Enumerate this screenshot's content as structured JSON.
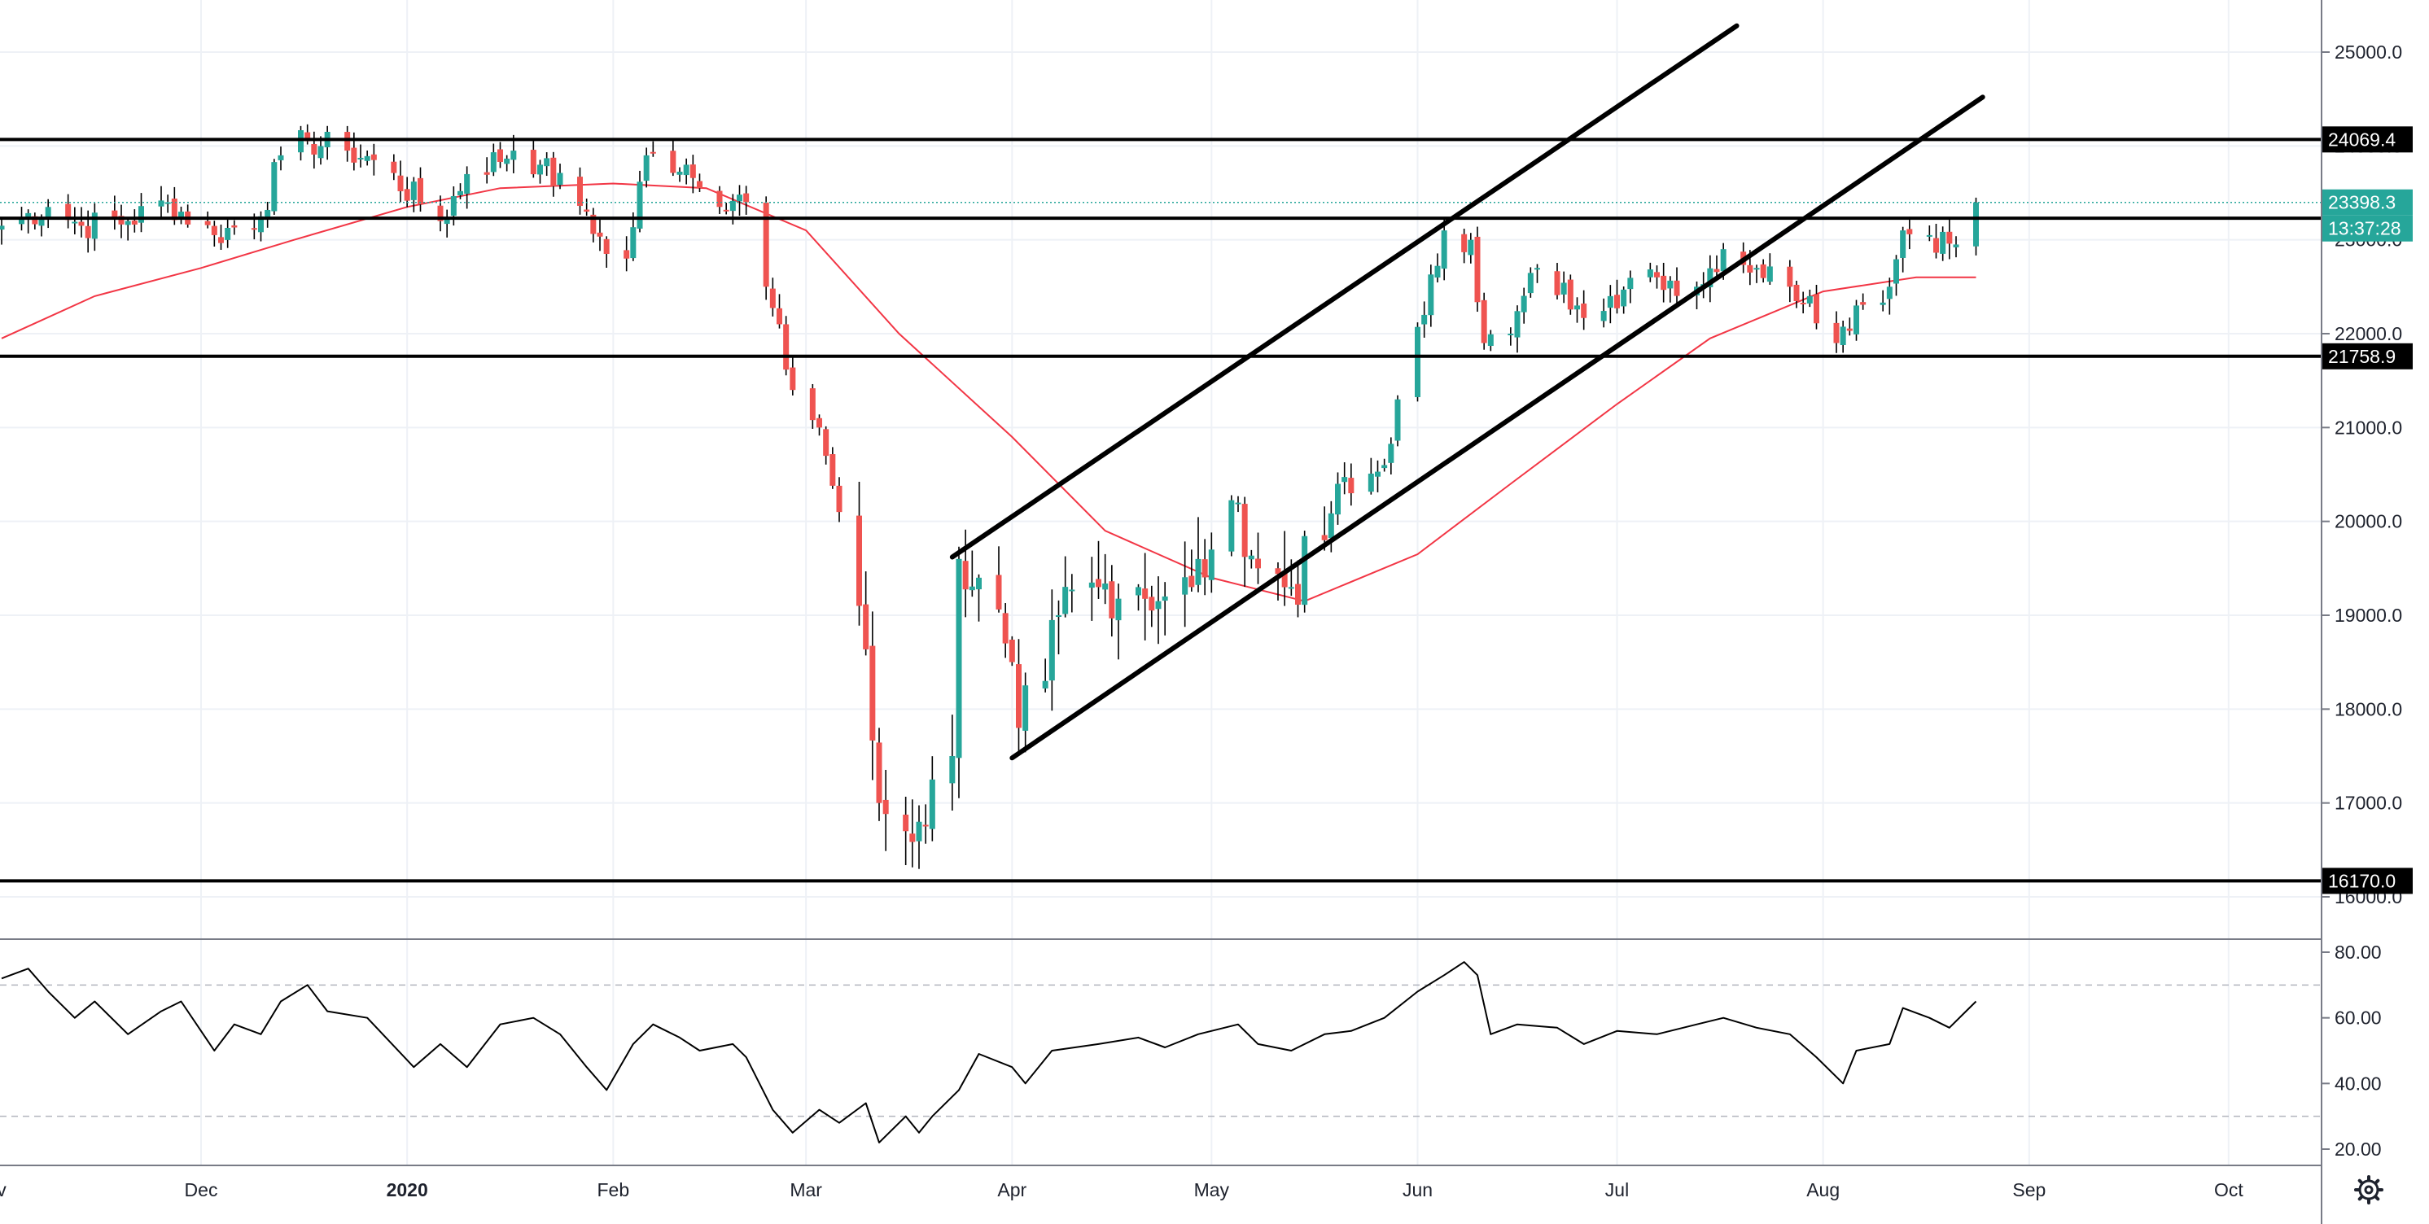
{
  "chart_data": [
    {
      "type": "candlestick",
      "title": "",
      "y_axis": {
        "range": [
          15550,
          25600
        ],
        "ticks": [
          "25000.0",
          "24000.0",
          "23000.0",
          "22000.0",
          "21000.0",
          "20000.0",
          "19000.0",
          "18000.0",
          "17000.0",
          "16000.0"
        ]
      },
      "x_axis": {
        "month_labels": [
          {
            "label": "v",
            "date": "2019-11-01"
          },
          {
            "label": "Dec",
            "date": "2019-12-01"
          },
          {
            "label": "2020",
            "date": "2020-01-01"
          },
          {
            "label": "Feb",
            "date": "2020-02-01"
          },
          {
            "label": "Mar",
            "date": "2020-03-01"
          },
          {
            "label": "Apr",
            "date": "2020-04-01"
          },
          {
            "label": "May",
            "date": "2020-05-01"
          },
          {
            "label": "Jun",
            "date": "2020-06-01"
          },
          {
            "label": "Jul",
            "date": "2020-07-01"
          },
          {
            "label": "Aug",
            "date": "2020-08-01"
          },
          {
            "label": "Sep",
            "date": "2020-09-01"
          },
          {
            "label": "Oct",
            "date": "2020-10-01"
          }
        ],
        "range": [
          "2019-11-01",
          "2020-10-30"
        ]
      },
      "colors": {
        "up": "#26a69a",
        "down": "#ef5350",
        "ma": "#f23645",
        "lines": "#000000"
      },
      "horizontal_levels": [
        {
          "value": 24069.4,
          "label": "24069.4"
        },
        {
          "value": 23230,
          "label": ""
        },
        {
          "value": 21758.9,
          "label": "21758.9"
        },
        {
          "value": 16170.0,
          "label": "16170.0"
        }
      ],
      "price_tag": {
        "label": "23398.3",
        "value": 23398.3,
        "countdown": "13:37:28"
      },
      "trend_lines": [
        {
          "points": [
            [
              "2020-03-23",
              19620
            ],
            [
              "2020-07-19",
              25280
            ]
          ]
        },
        {
          "points": [
            [
              "2020-04-01",
              17480
            ],
            [
              "2020-08-25",
              24520
            ]
          ]
        }
      ],
      "candle_anchors": [
        [
          "2019-11-01",
          23150
        ],
        [
          "2019-11-08",
          23350
        ],
        [
          "2019-11-13",
          23150
        ],
        [
          "2019-11-20",
          23200
        ],
        [
          "2019-11-26",
          23400
        ],
        [
          "2019-12-03",
          23050
        ],
        [
          "2019-12-10",
          23250
        ],
        [
          "2019-12-13",
          23900
        ],
        [
          "2019-12-17",
          24050
        ],
        [
          "2019-12-23",
          23950
        ],
        [
          "2019-12-27",
          23850
        ],
        [
          "2020-01-06",
          23200
        ],
        [
          "2020-01-10",
          23700
        ],
        [
          "2020-01-17",
          23950
        ],
        [
          "2020-01-21",
          23800
        ],
        [
          "2020-01-28",
          23300
        ],
        [
          "2020-01-31",
          22850
        ],
        [
          "2020-02-03",
          22800
        ],
        [
          "2020-02-06",
          23900
        ],
        [
          "2020-02-12",
          23800
        ],
        [
          "2020-02-14",
          23550
        ],
        [
          "2020-02-21",
          23400
        ],
        [
          "2020-02-24",
          22500
        ],
        [
          "2020-02-28",
          21400
        ],
        [
          "2020-03-03",
          21000
        ],
        [
          "2020-03-06",
          20100
        ],
        [
          "2020-03-09",
          19100
        ],
        [
          "2020-03-12",
          17000
        ],
        [
          "2020-03-16",
          16700
        ],
        [
          "2020-03-18",
          16800
        ],
        [
          "2020-03-23",
          17500
        ],
        [
          "2020-03-24",
          19600
        ],
        [
          "2020-03-27",
          19400
        ],
        [
          "2020-03-31",
          18700
        ],
        [
          "2020-04-02",
          17800
        ],
        [
          "2020-04-06",
          18300
        ],
        [
          "2020-04-08",
          19000
        ],
        [
          "2020-04-14",
          19300
        ],
        [
          "2020-04-20",
          19300
        ],
        [
          "2020-04-24",
          19200
        ],
        [
          "2020-04-28",
          19300
        ],
        [
          "2020-05-01",
          19700
        ],
        [
          "2020-05-05",
          20200
        ],
        [
          "2020-05-08",
          19500
        ],
        [
          "2020-05-13",
          19300
        ],
        [
          "2020-05-18",
          19800
        ],
        [
          "2020-05-20",
          20400
        ],
        [
          "2020-05-22",
          20300
        ],
        [
          "2020-05-27",
          20600
        ],
        [
          "2020-05-29",
          21300
        ],
        [
          "2020-06-02",
          22200
        ],
        [
          "2020-06-05",
          23100
        ],
        [
          "2020-06-09",
          23000
        ],
        [
          "2020-06-11",
          21900
        ],
        [
          "2020-06-15",
          22000
        ],
        [
          "2020-06-19",
          22700
        ],
        [
          "2020-06-25",
          22300
        ],
        [
          "2020-06-30",
          22400
        ],
        [
          "2020-07-07",
          22600
        ],
        [
          "2020-07-13",
          22500
        ],
        [
          "2020-07-17",
          22900
        ],
        [
          "2020-07-22",
          22700
        ],
        [
          "2020-07-27",
          22500
        ],
        [
          "2020-07-30",
          22400
        ],
        [
          "2020-08-03",
          21900
        ],
        [
          "2020-08-06",
          22300
        ],
        [
          "2020-08-11",
          22500
        ],
        [
          "2020-08-13",
          23100
        ],
        [
          "2020-08-17",
          23050
        ],
        [
          "2020-08-21",
          22950
        ],
        [
          "2020-08-24",
          23398.3
        ]
      ],
      "moving_average": [
        [
          "2019-11-01",
          21950
        ],
        [
          "2019-11-15",
          22400
        ],
        [
          "2019-12-01",
          22700
        ],
        [
          "2019-12-15",
          23000
        ],
        [
          "2020-01-01",
          23350
        ],
        [
          "2020-01-15",
          23550
        ],
        [
          "2020-02-01",
          23600
        ],
        [
          "2020-02-15",
          23550
        ],
        [
          "2020-03-01",
          23100
        ],
        [
          "2020-03-15",
          22000
        ],
        [
          "2020-04-01",
          20900
        ],
        [
          "2020-04-15",
          19900
        ],
        [
          "2020-05-01",
          19400
        ],
        [
          "2020-05-15",
          19150
        ],
        [
          "2020-06-01",
          19650
        ],
        [
          "2020-06-15",
          20400
        ],
        [
          "2020-07-01",
          21250
        ],
        [
          "2020-07-15",
          21950
        ],
        [
          "2020-08-01",
          22450
        ],
        [
          "2020-08-15",
          22600
        ],
        [
          "2020-08-24",
          22600
        ]
      ]
    },
    {
      "type": "line",
      "title": "",
      "y_axis": {
        "range": [
          16,
          84
        ],
        "ticks": [
          "80.00",
          "60.00",
          "40.00",
          "20.00"
        ]
      },
      "reference_levels": [
        70,
        30
      ],
      "series": [
        {
          "values": [
            [
              "2019-11-01",
              72
            ],
            [
              "2019-11-05",
              75
            ],
            [
              "2019-11-08",
              68
            ],
            [
              "2019-11-12",
              60
            ],
            [
              "2019-11-15",
              65
            ],
            [
              "2019-11-20",
              55
            ],
            [
              "2019-11-25",
              62
            ],
            [
              "2019-11-28",
              65
            ],
            [
              "2019-12-03",
              50
            ],
            [
              "2019-12-06",
              58
            ],
            [
              "2019-12-10",
              55
            ],
            [
              "2019-12-13",
              65
            ],
            [
              "2019-12-17",
              70
            ],
            [
              "2019-12-20",
              62
            ],
            [
              "2019-12-26",
              60
            ],
            [
              "2020-01-02",
              45
            ],
            [
              "2020-01-06",
              52
            ],
            [
              "2020-01-10",
              45
            ],
            [
              "2020-01-15",
              58
            ],
            [
              "2020-01-20",
              60
            ],
            [
              "2020-01-24",
              55
            ],
            [
              "2020-01-28",
              45
            ],
            [
              "2020-01-31",
              38
            ],
            [
              "2020-02-04",
              52
            ],
            [
              "2020-02-07",
              58
            ],
            [
              "2020-02-11",
              54
            ],
            [
              "2020-02-14",
              50
            ],
            [
              "2020-02-19",
              52
            ],
            [
              "2020-02-21",
              48
            ],
            [
              "2020-02-25",
              32
            ],
            [
              "2020-02-28",
              25
            ],
            [
              "2020-03-03",
              32
            ],
            [
              "2020-03-06",
              28
            ],
            [
              "2020-03-10",
              34
            ],
            [
              "2020-03-12",
              22
            ],
            [
              "2020-03-16",
              30
            ],
            [
              "2020-03-18",
              25
            ],
            [
              "2020-03-20",
              30
            ],
            [
              "2020-03-24",
              38
            ],
            [
              "2020-03-27",
              49
            ],
            [
              "2020-04-01",
              45
            ],
            [
              "2020-04-03",
              40
            ],
            [
              "2020-04-07",
              50
            ],
            [
              "2020-04-14",
              52
            ],
            [
              "2020-04-20",
              54
            ],
            [
              "2020-04-24",
              51
            ],
            [
              "2020-04-29",
              55
            ],
            [
              "2020-05-05",
              58
            ],
            [
              "2020-05-08",
              52
            ],
            [
              "2020-05-13",
              50
            ],
            [
              "2020-05-18",
              55
            ],
            [
              "2020-05-22",
              56
            ],
            [
              "2020-05-27",
              60
            ],
            [
              "2020-06-01",
              68
            ],
            [
              "2020-06-05",
              73
            ],
            [
              "2020-06-08",
              77
            ],
            [
              "2020-06-10",
              73
            ],
            [
              "2020-06-12",
              55
            ],
            [
              "2020-06-16",
              58
            ],
            [
              "2020-06-22",
              57
            ],
            [
              "2020-06-26",
              52
            ],
            [
              "2020-07-01",
              56
            ],
            [
              "2020-07-07",
              55
            ],
            [
              "2020-07-13",
              58
            ],
            [
              "2020-07-17",
              60
            ],
            [
              "2020-07-22",
              57
            ],
            [
              "2020-07-27",
              55
            ],
            [
              "2020-07-31",
              48
            ],
            [
              "2020-08-04",
              40
            ],
            [
              "2020-08-06",
              50
            ],
            [
              "2020-08-11",
              52
            ],
            [
              "2020-08-13",
              63
            ],
            [
              "2020-08-17",
              60
            ],
            [
              "2020-08-20",
              57
            ],
            [
              "2020-08-24",
              65
            ]
          ]
        }
      ]
    }
  ],
  "ui": {
    "settings_icon": "gear-icon"
  }
}
